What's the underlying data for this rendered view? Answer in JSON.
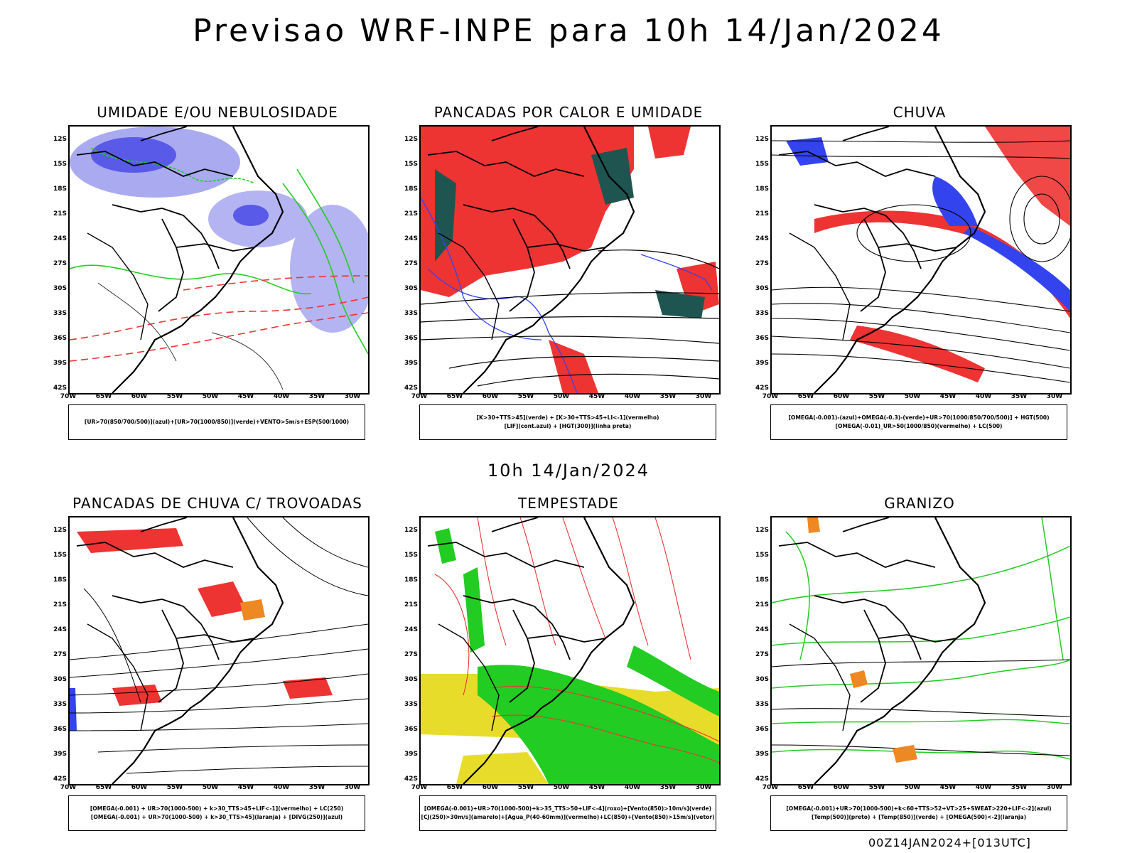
{
  "main_title": "Previsao WRF-INPE  para 10h 14/Jan/2024",
  "mid_title": "10h 14/Jan/2024",
  "footer_stamp": "00Z14JAN2024+[013UTC]",
  "axes": {
    "lat_labels": [
      "12S",
      "15S",
      "18S",
      "21S",
      "24S",
      "27S",
      "30S",
      "33S",
      "36S",
      "39S",
      "42S"
    ],
    "lon_labels": [
      "70W",
      "65W",
      "60W",
      "55W",
      "50W",
      "45W",
      "40W",
      "35W",
      "30W"
    ]
  },
  "colors": {
    "blue": "#3344ee",
    "light_blue": "#aaaaf0",
    "green": "#22cc22",
    "red": "#ee3333",
    "dark_teal": "#1f5550",
    "yellow": "#e8dc2a",
    "orange": "#ee8822"
  },
  "panels": [
    {
      "title": "UMIDADE E/OU NEBULOSIDADE",
      "legend": [
        "[UR>70(850/700/500)](azul)+[UR>70(1000/850)](verde)+VENTO>5m/s+ESP(500/1000)"
      ]
    },
    {
      "title": "PANCADAS POR CALOR E UMIDADE",
      "legend": [
        "[K>30+TTS>45](verde) + [K>30+TTS>45+LI<-1](vermelho)",
        "[LIF](cont.azul) + [HGT(300)](linha preta)"
      ]
    },
    {
      "title": "CHUVA",
      "legend": [
        "[OMEGA(-0.001)-(azul)+OMEGA(-0.3)-(verde)+UR>70(1000/850/700/500)] + HGT(500)",
        "[OMEGA(-0.01)_UR>50(1000/850)(vermelho) + LC(500)"
      ]
    },
    {
      "title": "PANCADAS DE CHUVA C/ TROVOADAS",
      "legend": [
        "[OMEGA(-0.001) + UR>70(1000-500) + k>30_TTS>45+LIF<-1](vermelho) + LC(250)",
        "[OMEGA(-0.001) + UR>70(1000-500) + k>30_TTS>45](laranja) + [DIVG(250)](azul)"
      ]
    },
    {
      "title": "TEMPESTADE",
      "legend": [
        "[OMEGA(-0.001)+UR>70(1000-500)+k>35_TTS>50+LIF<-4](roxo)+[Vento(850)>10m/s](verde)",
        "[CJ(250)>30m/s](amarelo)+[Agua_P(40-60mm)](vermelho)+LC(850)+[Vento(850)>15m/s](vetor)"
      ]
    },
    {
      "title": "GRANIZO",
      "legend": [
        "[OMEGA(-0.001)+UR>70(1000-500)+k<60+TTS>52+VT>25+SWEAT>220+LIF<-2](azul)",
        "[Temp(500)](preto) + [Temp(850)](verde) + [OMEGA(500)<-2](laranja)"
      ]
    }
  ]
}
